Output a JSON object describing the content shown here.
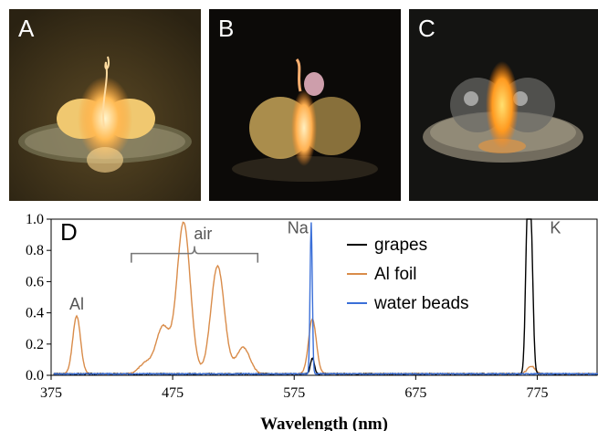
{
  "panels": [
    {
      "letter": "A"
    },
    {
      "letter": "B"
    },
    {
      "letter": "C"
    }
  ],
  "chart_data": {
    "type": "line",
    "panel_letter": "D",
    "xlabel": "Wavelength (nm)",
    "ylabel": "",
    "xlim": [
      375,
      825
    ],
    "ylim": [
      0,
      1.0
    ],
    "x_ticks": [
      375,
      475,
      575,
      675,
      775
    ],
    "y_ticks": [
      0.0,
      0.2,
      0.4,
      0.6,
      0.8,
      1.0
    ],
    "y_tick_labels": [
      "0.0",
      "0.2",
      "0.4",
      "0.6",
      "0.8",
      "1.0"
    ],
    "grid": false,
    "legend_position": "top-right",
    "series": [
      {
        "name": "grapes",
        "color": "#000000",
        "peaks": [
          [
            590,
            0.1
          ],
          [
            767,
            1.0
          ],
          [
            770,
            0.83
          ]
        ]
      },
      {
        "name": "Al foil",
        "color": "#d98c4a",
        "peaks": [
          [
            396,
            0.37
          ],
          [
            453,
            0.07
          ],
          [
            467,
            0.3
          ],
          [
            484,
            0.97
          ],
          [
            512,
            0.69
          ],
          [
            533,
            0.17
          ],
          [
            590,
            0.35
          ],
          [
            770,
            0.05
          ]
        ]
      },
      {
        "name": "water beads",
        "color": "#3a6fd8",
        "peaks": [
          [
            589,
            0.97
          ]
        ]
      }
    ],
    "annotations": [
      {
        "text": "Al",
        "x": 396,
        "y": 0.42
      },
      {
        "text": "air",
        "x": 500,
        "y": 0.87
      },
      {
        "text": "Na",
        "x": 578,
        "y": 0.91
      },
      {
        "text": "K",
        "x": 790,
        "y": 0.91
      }
    ],
    "bracket": {
      "label": "air",
      "x_start": 441,
      "x_end": 545,
      "y": 0.78
    }
  }
}
